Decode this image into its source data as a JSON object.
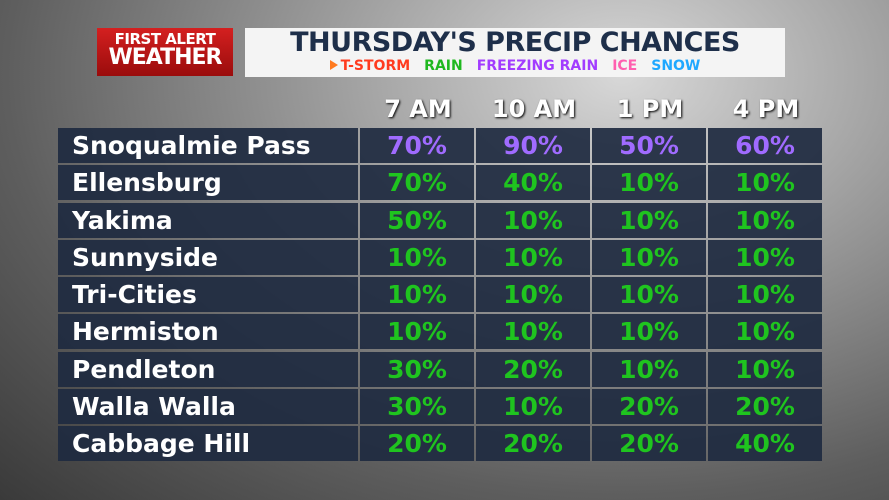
{
  "logo": {
    "line1": "FIRST ALERT",
    "line2": "WEATHER"
  },
  "header": {
    "title": "THURSDAY'S PRECIP CHANCES",
    "legend": [
      {
        "text": "T-STORM",
        "color": "#ff3b1f"
      },
      {
        "text": "RAIN",
        "color": "#1fb81f"
      },
      {
        "text": "FREEZING RAIN",
        "color": "#a23cff"
      },
      {
        "text": "ICE",
        "color": "#ff5fb0"
      },
      {
        "text": "SNOW",
        "color": "#1fa8ff"
      }
    ]
  },
  "table": {
    "columns": [
      "7 AM",
      "10 AM",
      "1 PM",
      "4 PM"
    ],
    "rows": [
      {
        "name": "Snoqualmie Pass",
        "color": "#a06bff",
        "cells": [
          "70%",
          "90%",
          "50%",
          "60%"
        ]
      },
      {
        "name": "Ellensburg",
        "color": "#1fc41f",
        "cells": [
          "70%",
          "40%",
          "10%",
          "10%"
        ]
      },
      {
        "name": "Yakima",
        "color": "#1fc41f",
        "cells": [
          "50%",
          "10%",
          "10%",
          "10%"
        ]
      },
      {
        "name": "Sunnyside",
        "color": "#1fc41f",
        "cells": [
          "10%",
          "10%",
          "10%",
          "10%"
        ]
      },
      {
        "name": "Tri-Cities",
        "color": "#1fc41f",
        "cells": [
          "10%",
          "10%",
          "10%",
          "10%"
        ]
      },
      {
        "name": "Hermiston",
        "color": "#1fc41f",
        "cells": [
          "10%",
          "10%",
          "10%",
          "10%"
        ]
      },
      {
        "name": "Pendleton",
        "color": "#1fc41f",
        "cells": [
          "30%",
          "20%",
          "10%",
          "10%"
        ]
      },
      {
        "name": "Walla Walla",
        "color": "#1fc41f",
        "cells": [
          "30%",
          "10%",
          "20%",
          "20%"
        ]
      },
      {
        "name": "Cabbage Hill",
        "color": "#1fc41f",
        "cells": [
          "20%",
          "20%",
          "20%",
          "40%"
        ]
      }
    ]
  }
}
